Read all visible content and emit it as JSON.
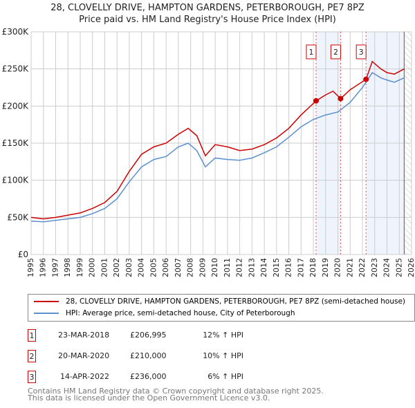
{
  "title": "28, CLOVELLY DRIVE, HAMPTON GARDENS, PETERBOROUGH, PE7 8PZ",
  "subtitle": "Price paid vs. HM Land Registry's House Price Index (HPI)",
  "colors": {
    "property": "#cc0000",
    "hpi": "#5b8fd0",
    "shade": "#eef3fc"
  },
  "chart_data": {
    "type": "line",
    "xlim": [
      1995,
      2026
    ],
    "ylim": [
      0,
      300000
    ],
    "y_ticks": [
      {
        "v": 0,
        "label": "£0"
      },
      {
        "v": 50000,
        "label": "£50K"
      },
      {
        "v": 100000,
        "label": "£100K"
      },
      {
        "v": 150000,
        "label": "£150K"
      },
      {
        "v": 200000,
        "label": "£200K"
      },
      {
        "v": 250000,
        "label": "£250K"
      },
      {
        "v": 300000,
        "label": "£300K"
      }
    ],
    "x_ticks": [
      1995,
      1996,
      1997,
      1998,
      1999,
      2000,
      2001,
      2002,
      2003,
      2004,
      2005,
      2006,
      2007,
      2008,
      2009,
      2010,
      2011,
      2012,
      2013,
      2014,
      2015,
      2016,
      2017,
      2018,
      2019,
      2020,
      2021,
      2022,
      2023,
      2024,
      2025,
      2026
    ],
    "series": [
      {
        "name": "28, CLOVELLY DRIVE, HAMPTON GARDENS, PETERBOROUGH, PE7 8PZ (semi-detached house)",
        "color": "#cc0000",
        "x": [
          1995,
          1996,
          1997,
          1998,
          1999,
          2000,
          2001,
          2002,
          2003,
          2004,
          2005,
          2006,
          2007,
          2007.8,
          2008.5,
          2009.2,
          2010,
          2011,
          2012,
          2013,
          2014,
          2015,
          2016,
          2017,
          2018.22,
          2019,
          2019.6,
          2020.22,
          2021,
          2022.29,
          2022.8,
          2023.5,
          2024,
          2024.6,
          2025.4
        ],
        "y": [
          50000,
          48000,
          50000,
          53000,
          56000,
          62000,
          70000,
          85000,
          112000,
          135000,
          145000,
          150000,
          162000,
          170000,
          160000,
          133000,
          148000,
          145000,
          140000,
          142000,
          148000,
          157000,
          170000,
          188000,
          206995,
          215000,
          220000,
          210000,
          222000,
          236000,
          260000,
          250000,
          245000,
          243000,
          250000
        ]
      },
      {
        "name": "HPI: Average price, semi-detached house, City of Peterborough",
        "color": "#5b8fd0",
        "x": [
          1995,
          1996,
          1997,
          1998,
          1999,
          2000,
          2001,
          2002,
          2003,
          2004,
          2005,
          2006,
          2007,
          2007.8,
          2008.5,
          2009.2,
          2010,
          2011,
          2012,
          2013,
          2014,
          2015,
          2016,
          2017,
          2018,
          2019,
          2020,
          2021,
          2022,
          2022.8,
          2023.5,
          2024,
          2024.6,
          2025.4
        ],
        "y": [
          45000,
          44000,
          46000,
          48000,
          50000,
          55000,
          62000,
          75000,
          98000,
          118000,
          128000,
          132000,
          145000,
          150000,
          140000,
          118000,
          130000,
          128000,
          127000,
          130000,
          137000,
          145000,
          158000,
          172000,
          182000,
          188000,
          192000,
          205000,
          225000,
          245000,
          238000,
          235000,
          232000,
          238000
        ]
      }
    ],
    "sales": [
      {
        "n": "1",
        "x": 2018.22,
        "y": 206995
      },
      {
        "n": "2",
        "x": 2020.22,
        "y": 210000
      },
      {
        "n": "3",
        "x": 2022.29,
        "y": 236000
      }
    ],
    "hatch_from": 2025.4
  },
  "legend": [
    {
      "label": "28, CLOVELLY DRIVE, HAMPTON GARDENS, PETERBOROUGH, PE7 8PZ (semi-detached house)"
    },
    {
      "label": "HPI: Average price, semi-detached house, City of Peterborough"
    }
  ],
  "table": [
    {
      "n": "1",
      "date": "23-MAR-2018",
      "price": "£206,995",
      "hpi": "12% ↑ HPI"
    },
    {
      "n": "2",
      "date": "20-MAR-2020",
      "price": "£210,000",
      "hpi": "10% ↑ HPI"
    },
    {
      "n": "3",
      "date": "14-APR-2022",
      "price": "£236,000",
      "hpi": "6% ↑ HPI"
    }
  ],
  "footer": {
    "line1": "Contains HM Land Registry data © Crown copyright and database right 2025.",
    "line2": "This data is licensed under the Open Government Licence v3.0."
  }
}
